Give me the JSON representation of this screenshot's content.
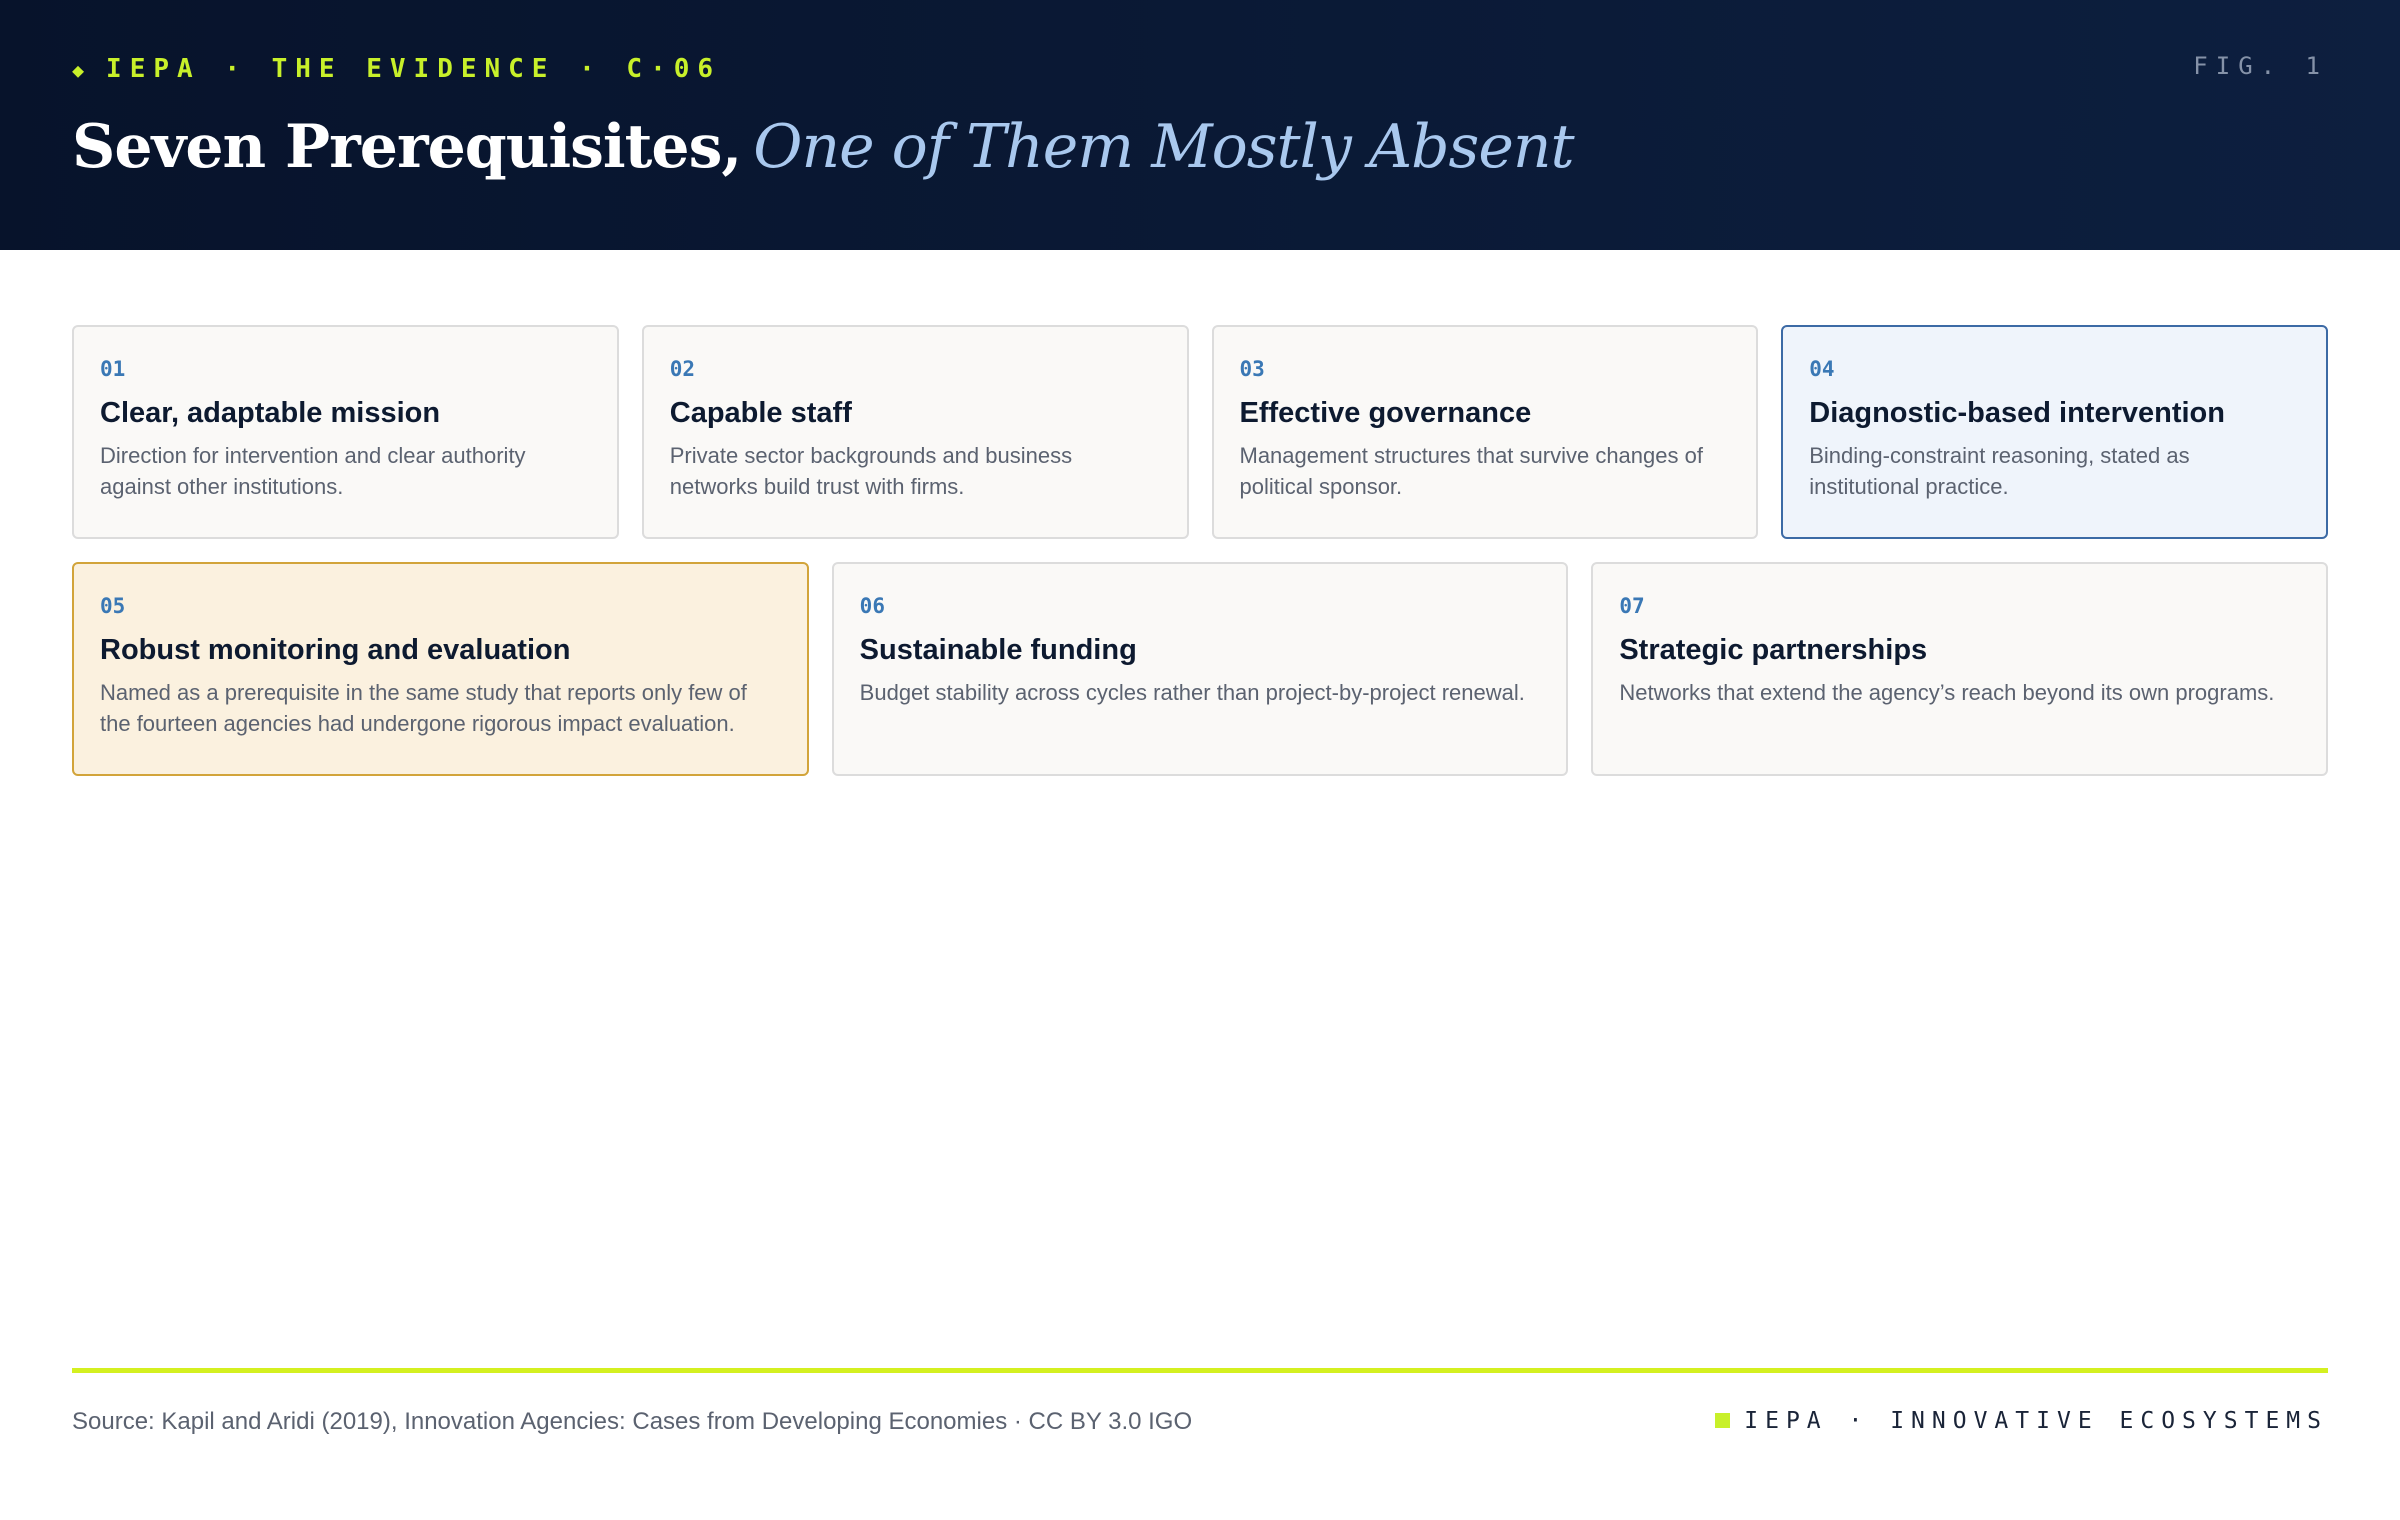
{
  "header": {
    "kicker": "IEPA · THE EVIDENCE · C·06",
    "title_main": "Seven Prerequisites,",
    "title_italic": "One of Them Mostly Absent",
    "fig": "FIG. 1"
  },
  "cards": [
    {
      "number": "01",
      "title": "Clear, adaptable mission",
      "description": "Direction for intervention and clear authority against other institutions."
    },
    {
      "number": "02",
      "title": "Capable staff",
      "description": "Private sector backgrounds and business networks build trust with firms."
    },
    {
      "number": "03",
      "title": "Effective governance",
      "description": "Management structures that survive changes of political sponsor."
    },
    {
      "number": "04",
      "title": "Diagnostic-based intervention",
      "description": "Binding-constraint reasoning, stated as institutional practice."
    },
    {
      "number": "05",
      "title": "Robust monitoring and evaluation",
      "description": "Named as a prerequisite in the same study that reports only few of the fourteen agencies had undergone rigorous impact evaluation."
    },
    {
      "number": "06",
      "title": "Sustainable funding",
      "description": "Budget stability across cycles rather than project-by-project renewal."
    },
    {
      "number": "07",
      "title": "Strategic partnerships",
      "description": "Networks that extend the agency’s reach beyond its own programs."
    }
  ],
  "footer": {
    "source": "Source: Kapil and Aridi (2019), Innovation Agencies: Cases from Developing Economies · CC BY 3.0 IGO",
    "brand": "IEPA · INNOVATIVE ECOSYSTEMS"
  }
}
